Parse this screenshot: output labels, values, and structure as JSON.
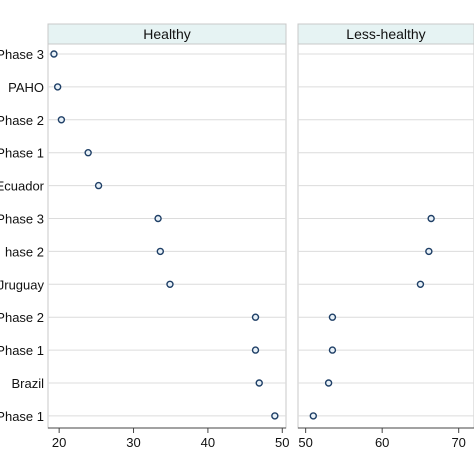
{
  "chart_data": {
    "type": "scatter",
    "rows": [
      "Phase 3",
      "PAHO",
      "Phase 2",
      "Phase 1",
      "Ecuador",
      "Phase 3",
      "hase  2",
      "Jruguay",
      "Phase 2",
      "Phase 1",
      "Brazil",
      "Phase 1"
    ],
    "panels": [
      {
        "title": "Healthy",
        "xlim": [
          18.5,
          50.5
        ],
        "xticks": [
          20,
          30,
          40,
          50
        ],
        "tick_labels": [
          "20",
          "30",
          "40",
          "50"
        ],
        "values": [
          19.3,
          19.8,
          20.3,
          23.9,
          25.3,
          33.3,
          33.6,
          34.9,
          46.4,
          46.4,
          46.9,
          49.0
        ]
      },
      {
        "title": "Less-healthy",
        "xlim": [
          49,
          72
        ],
        "xticks": [
          50,
          60,
          70
        ],
        "tick_labels": [
          "50",
          "60",
          "70"
        ],
        "values": [
          null,
          null,
          null,
          null,
          null,
          66.4,
          66.1,
          65.0,
          53.5,
          53.5,
          53.0,
          51.0
        ]
      }
    ],
    "grid": true,
    "xlabel": "",
    "ylabel": ""
  },
  "colors": {
    "strip_fill": "#e6f3f3",
    "marker_stroke": "#1f3f66",
    "marker_fill": "#e8f1f8",
    "grid": "#dcdcdc"
  }
}
